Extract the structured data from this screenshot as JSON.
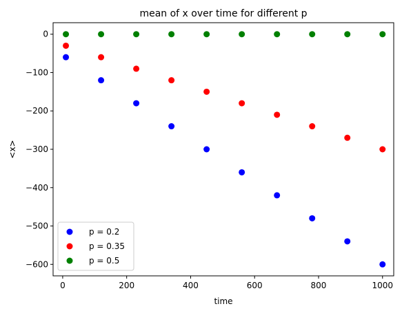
{
  "chart_data": {
    "type": "scatter",
    "title": "mean of x over time for different p",
    "xlabel": "time",
    "ylabel": "<x>",
    "xlim": [
      -30,
      1035
    ],
    "ylim": [
      -630,
      30
    ],
    "xticks": [
      0,
      200,
      400,
      600,
      800,
      1000
    ],
    "yticks": [
      0,
      -100,
      -200,
      -300,
      -400,
      -500,
      -600
    ],
    "grid": false,
    "legend_position": "lower-left",
    "x": [
      10,
      120,
      230,
      340,
      450,
      560,
      670,
      780,
      890,
      1000
    ],
    "series": [
      {
        "name": "p = 0.2",
        "color": "#0000ff",
        "values": [
          -60,
          -120,
          -180,
          -240,
          -300,
          -360,
          -420,
          -480,
          -540,
          -600
        ]
      },
      {
        "name": "p = 0.35",
        "color": "#ff0000",
        "values": [
          -30,
          -60,
          -90,
          -120,
          -150,
          -180,
          -210,
          -240,
          -270,
          -300
        ]
      },
      {
        "name": "p = 0.5",
        "color": "#008000",
        "values": [
          0,
          0,
          0,
          0,
          0,
          0,
          0,
          0,
          0,
          0
        ]
      }
    ]
  }
}
